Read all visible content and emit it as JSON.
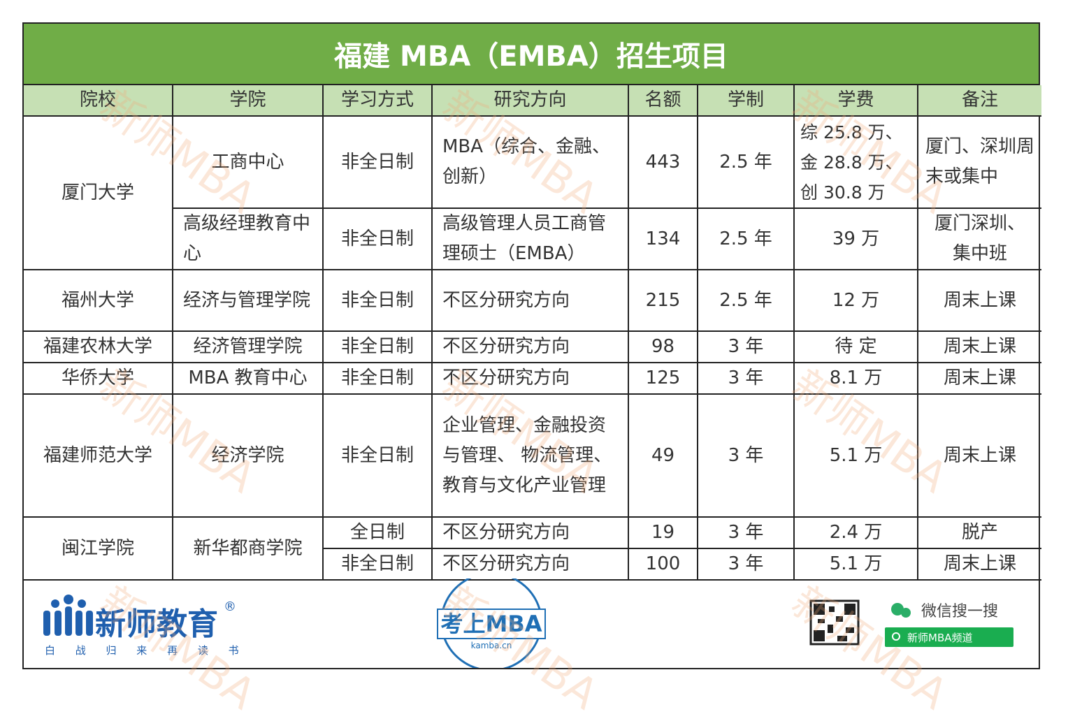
{
  "header": {
    "title": "福建 MBA（EMBA）招生项目"
  },
  "table": {
    "columns": [
      "院校",
      "学院",
      "学习方式",
      "研究方向",
      "名额",
      "学制",
      "学费",
      "备注"
    ],
    "rows": [
      [
        "厦门大学",
        "工商中心",
        "非全日制",
        "MBA（综合、金融、创新）",
        "443",
        "2.5 年",
        "综 25.8 万、金 28.8 万、创 30.8 万",
        "厦门、深圳周末或集中"
      ],
      [
        "高级经理教育中心",
        "非全日制",
        "高级管理人员工商管理硕士（EMBA）",
        "134",
        "2.5 年",
        "39 万",
        "厦门深圳、集中班"
      ],
      [
        "福州大学",
        "经济与管理学院",
        "非全日制",
        "不区分研究方向",
        "215",
        "2.5 年",
        "12 万",
        "周末上课"
      ],
      [
        "福建农林大学",
        "经济管理学院",
        "非全日制",
        "不区分研究方向",
        "98",
        "3 年",
        "待 定",
        "周末上课"
      ],
      [
        "华侨大学",
        "MBA 教育中心",
        "非全日制",
        "不区分研究方向",
        "125",
        "3 年",
        "8.1 万",
        "周末上课"
      ],
      [
        "福建师范大学",
        "经济学院",
        "非全日制",
        "企业管理、金融投资与管理、 物流管理、教育与文化产业管理",
        "49",
        "3 年",
        "5.1 万",
        "周末上课"
      ],
      [
        "闽江学院",
        "新华都商学院",
        "全日制",
        "不区分研究方向",
        "19",
        "3 年",
        "2.4 万",
        "脱产"
      ],
      [
        "非全日制",
        "不区分研究方向",
        "100",
        "3 年",
        "5.1 万",
        "周末上课"
      ]
    ]
  },
  "footer": {
    "brand": "新师教育",
    "registered": "®",
    "slogan": "白 战 归 来 再 读 书",
    "center_logo": "考上MBA",
    "center_url": "kamba.cn",
    "wechat": "微信搜一搜",
    "search": "新师MBA频道"
  },
  "watermark": "新师MBA"
}
